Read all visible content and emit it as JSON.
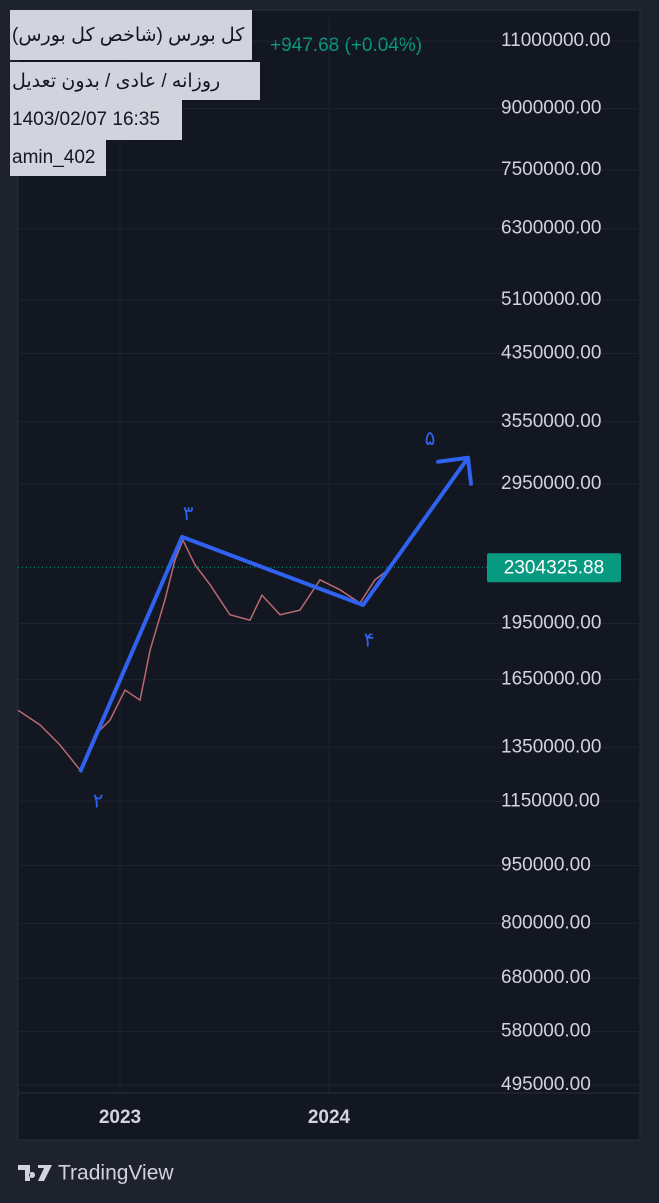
{
  "chart_data": {
    "type": "line",
    "header": {
      "symbol": "کل بورس (شاخص کل بورس)",
      "settings": "روزانه / عادی / بدون تعدیل",
      "datetime": "1403/02/07 16:35",
      "author": "amin_402",
      "change": "+947.68 (+0.04%)"
    },
    "x": [
      2022.512,
      2022.617,
      2022.713,
      2022.809,
      2022.88,
      2022.952,
      2023.024,
      2023.096,
      2023.144,
      2023.215,
      2023.263,
      2023.301,
      2023.359,
      2023.431,
      2023.526,
      2023.622,
      2023.679,
      2023.766,
      2023.861,
      2023.957,
      2024.053,
      2024.148,
      2024.22,
      2024.292
    ],
    "series": [
      {
        "color": "#b86a70",
        "values": [
          1507000,
          1443000,
          1359000,
          1262000,
          1400000,
          1463000,
          1600000,
          1553000,
          1802000,
          2091000,
          2354000,
          2498000,
          2321000,
          2188000,
          2001000,
          1969000,
          2121000,
          2001000,
          2029000,
          2220000,
          2155000,
          2072000,
          2220000,
          2297000
        ]
      }
    ],
    "last_price": {
      "value": 2304325.88,
      "label": "2304325.88",
      "color": "#089981"
    },
    "wave": {
      "color": "#2f62f0",
      "x": [
        2022.809,
        2023.297,
        2024.163,
        2024.665
      ],
      "values": [
        1254000,
        2522000,
        2060000,
        3190000
      ],
      "labels": [
        "۲",
        "۳",
        "۴",
        "۵"
      ]
    },
    "log_scale": true,
    "grid": true,
    "xlim": [
      2022.512,
      2025.488
    ],
    "xticks": [
      2023,
      2024
    ],
    "ylim": [
      483400,
      11780000
    ],
    "yticks": [
      {
        "value": 11000000,
        "label": "11000000.00"
      },
      {
        "value": 9000000,
        "label": "9000000.00"
      },
      {
        "value": 7500000,
        "label": "7500000.00"
      },
      {
        "value": 6300000,
        "label": "6300000.00"
      },
      {
        "value": 5100000,
        "label": "5100000.00"
      },
      {
        "value": 4350000,
        "label": "4350000.00"
      },
      {
        "value": 3550000,
        "label": "3550000.00"
      },
      {
        "value": 2950000,
        "label": "2950000.00"
      },
      {
        "value": 1950000,
        "label": "1950000.00"
      },
      {
        "value": 1650000,
        "label": "1650000.00"
      },
      {
        "value": 1350000,
        "label": "1350000.00"
      },
      {
        "value": 1150000,
        "label": "1150000.00"
      },
      {
        "value": 950000,
        "label": "950000.00"
      },
      {
        "value": 800000,
        "label": "800000.00"
      },
      {
        "value": 680000,
        "label": "680000.00"
      },
      {
        "value": 580000,
        "label": "580000.00"
      },
      {
        "value": 495000,
        "label": "495000.00"
      }
    ],
    "brand": "TradingView"
  }
}
